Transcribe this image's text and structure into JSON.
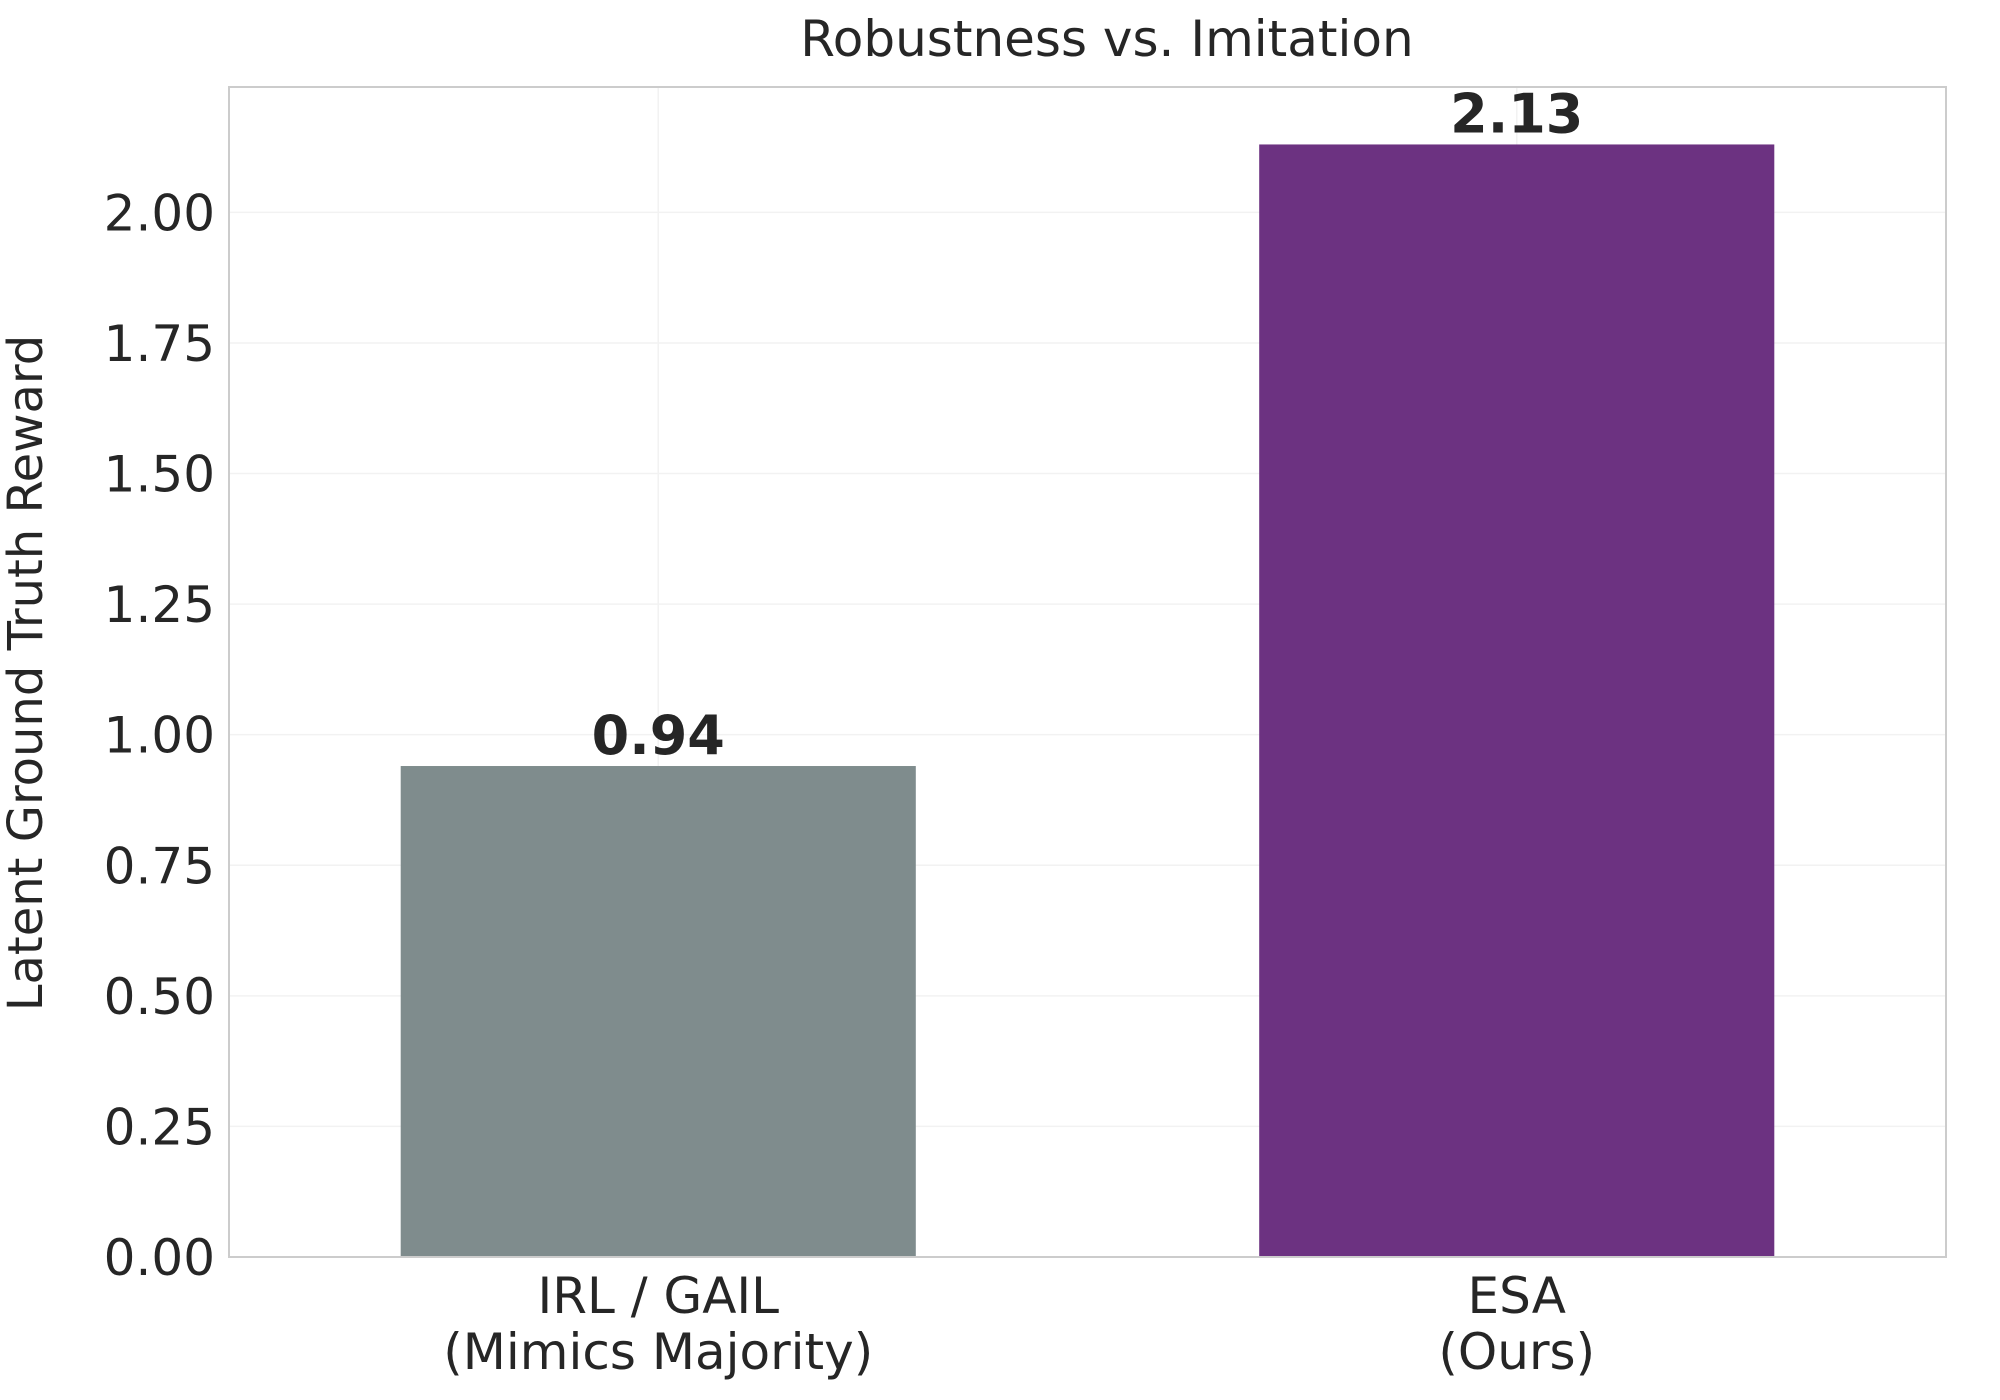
{
  "chart_data": {
    "type": "bar",
    "title": "Robustness vs. Imitation",
    "xlabel": "",
    "ylabel": "Latent Ground Truth Reward",
    "categories": [
      [
        "IRL / GAIL",
        "(Mimics Majority)"
      ],
      [
        "ESA",
        "(Ours)"
      ]
    ],
    "values": [
      0.94,
      2.13
    ],
    "value_labels": [
      "0.94",
      "2.13"
    ],
    "colors": [
      "#7f8c8d",
      "#6c3281"
    ],
    "ylim": [
      0,
      2.24
    ],
    "yticks": [
      0.0,
      0.25,
      0.5,
      0.75,
      1.0,
      1.25,
      1.5,
      1.75,
      2.0
    ],
    "ytick_labels": [
      "0.00",
      "0.25",
      "0.50",
      "0.75",
      "1.00",
      "1.25",
      "1.50",
      "1.75",
      "2.00"
    ],
    "grid": true,
    "legend": "none"
  }
}
